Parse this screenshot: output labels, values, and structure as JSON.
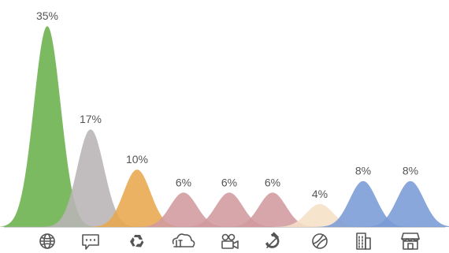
{
  "chart_data": {
    "type": "area",
    "x_axis": "categories",
    "categories": [
      {
        "icon": "globe-icon",
        "value": 35,
        "label": "35%",
        "color": "#6ab04c"
      },
      {
        "icon": "chat-bubble-icon",
        "value": 17,
        "label": "17%",
        "color": "#b8b4b6"
      },
      {
        "icon": "recycle-icon",
        "value": 10,
        "label": "10%",
        "color": "#e8a74e"
      },
      {
        "icon": "it-cloud-icon",
        "value": 6,
        "label": "6%",
        "color": "#d19a9e"
      },
      {
        "icon": "video-camera-icon",
        "value": 6,
        "label": "6%",
        "color": "#d19a9e"
      },
      {
        "icon": "hammer-sickle-icon",
        "value": 6,
        "label": "6%",
        "color": "#d19a9e"
      },
      {
        "icon": "tennis-ball-icon",
        "value": 4,
        "label": "4%",
        "color": "#f5e0c6"
      },
      {
        "icon": "building-icon",
        "value": 8,
        "label": "8%",
        "color": "#7a9bd6"
      },
      {
        "icon": "storefront-icon",
        "value": 8,
        "label": "8%",
        "color": "#7a9bd6"
      }
    ],
    "ylim": [
      0,
      35
    ],
    "grid": false,
    "legend": "none"
  }
}
